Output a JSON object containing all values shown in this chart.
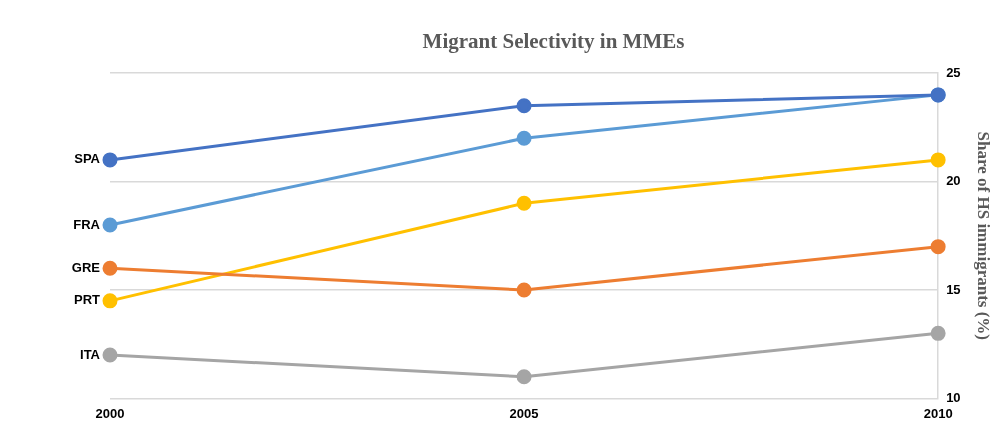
{
  "chart_data": {
    "type": "line",
    "title": "Migrant Selectivity in MMEs",
    "y2label": "Share of HS immigrants (%)",
    "x": [
      2000,
      2005,
      2010
    ],
    "xlim": [
      2000,
      2010
    ],
    "xticks": [
      2000,
      2005,
      2010
    ],
    "y2lim": [
      10,
      25
    ],
    "y2ticks": [
      10,
      15,
      20,
      25
    ],
    "grid": "y",
    "legend": false,
    "marker": "circle",
    "line_style": "solid",
    "series": [
      {
        "name": "SPA",
        "color": "#4472c4",
        "axis": "y2",
        "values": [
          21,
          23.5,
          24
        ]
      },
      {
        "name": "FRA",
        "color": "#5b9bd5",
        "axis": "y2",
        "values": [
          18,
          22,
          24
        ]
      },
      {
        "name": "GRE",
        "color": "#ed7d31",
        "axis": "y2",
        "values": [
          16,
          15,
          17
        ]
      },
      {
        "name": "PRT",
        "color": "#ffc000",
        "axis": "y2",
        "values": [
          14.5,
          19,
          21
        ]
      },
      {
        "name": "ITA",
        "color": "#a5a5a5",
        "axis": "y2",
        "values": [
          12,
          11,
          13
        ]
      }
    ]
  }
}
